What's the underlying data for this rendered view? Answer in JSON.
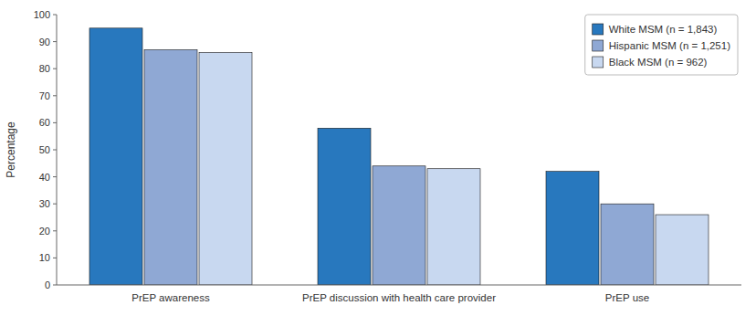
{
  "chart_data": {
    "type": "bar",
    "categories": [
      "PrEP awareness",
      "PrEP discussion with health care provider",
      "PrEP use"
    ],
    "series": [
      {
        "name": "White MSM (n = 1,843)",
        "color": "#2878BE",
        "values": [
          95,
          58,
          42
        ]
      },
      {
        "name": "Hispanic MSM (n = 1,251)",
        "color": "#8FA8D4",
        "values": [
          87,
          44,
          30
        ]
      },
      {
        "name": "Black MSM (n = 962)",
        "color": "#C8D8F0",
        "values": [
          86,
          43,
          26
        ]
      }
    ],
    "ylabel": "Percentage",
    "ylim": [
      0,
      100
    ],
    "yticks": [
      0,
      10,
      20,
      30,
      40,
      50,
      60,
      70,
      80,
      90,
      100
    ],
    "grid": false,
    "legend": "upper right"
  }
}
